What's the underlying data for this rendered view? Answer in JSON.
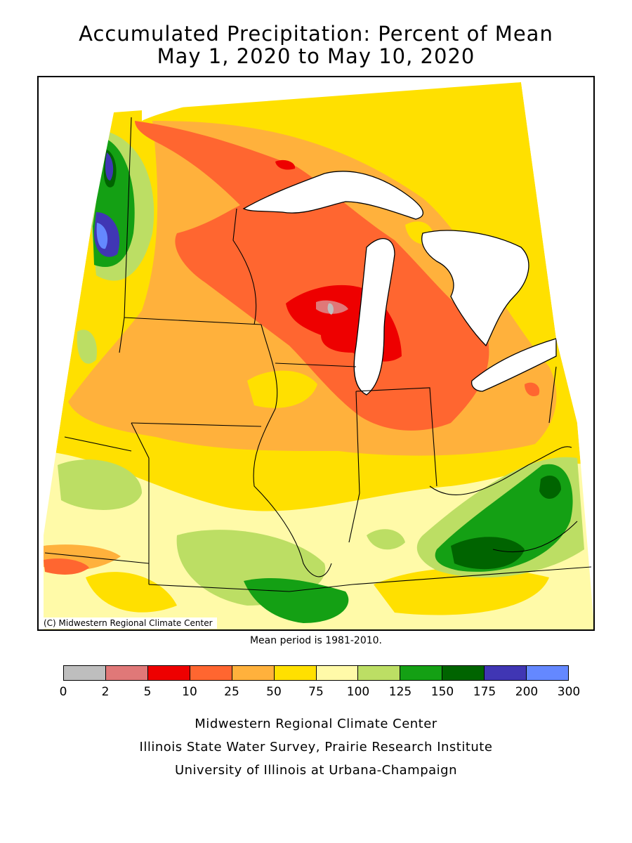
{
  "title": {
    "line1": "Accumulated Precipitation: Percent of Mean",
    "line2": "May 1, 2020 to May 10, 2020"
  },
  "map": {
    "credit": "(C) Midwestern Regional Climate Center",
    "mean_period": "Mean period is 1981-2010."
  },
  "legend": {
    "colors": [
      "#bebebe",
      "#e07878",
      "#ee0000",
      "#ff6630",
      "#ffb13c",
      "#ffe000",
      "#fffaa8",
      "#bcde64",
      "#14a014",
      "#006400",
      "#4036b4",
      "#6488ff"
    ],
    "ticks": [
      "0",
      "2",
      "5",
      "10",
      "25",
      "50",
      "75",
      "100",
      "125",
      "150",
      "175",
      "200",
      "300"
    ]
  },
  "footer": {
    "line1": "Midwestern Regional Climate Center",
    "line2": "Illinois State Water Survey, Prairie Research Institute",
    "line3": "University of Illinois at Urbana-Champaign"
  }
}
